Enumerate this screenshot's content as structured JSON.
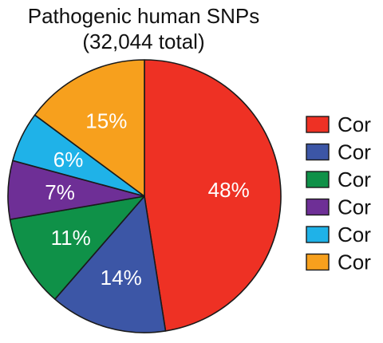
{
  "chart_data": {
    "type": "pie",
    "title": "Pathogenic human SNPs",
    "subtitle": "(32,044 total)",
    "slices": [
      {
        "value": 48,
        "label": "48%",
        "color": "#ee3124"
      },
      {
        "value": 14,
        "label": "14%",
        "color": "#3c56a6"
      },
      {
        "value": 11,
        "label": "11%",
        "color": "#0f9148"
      },
      {
        "value": 7,
        "label": "7%",
        "color": "#6e2f96"
      },
      {
        "value": 6,
        "label": "6%",
        "color": "#1fb2e8"
      },
      {
        "value": 15,
        "label": "15%",
        "color": "#f7a01d"
      }
    ],
    "legend": {
      "placement": "right",
      "entries": [
        {
          "label": "Cor",
          "color": "#ee3124"
        },
        {
          "label": "Cor",
          "color": "#3c56a6"
        },
        {
          "label": "Cor",
          "color": "#0f9148"
        },
        {
          "label": "Cor",
          "color": "#6e2f96"
        },
        {
          "label": "Cor",
          "color": "#1fb2e8"
        },
        {
          "label": "Cor",
          "color": "#f7a01d"
        }
      ]
    },
    "start_angle_deg": 0,
    "direction": "clockwise"
  }
}
